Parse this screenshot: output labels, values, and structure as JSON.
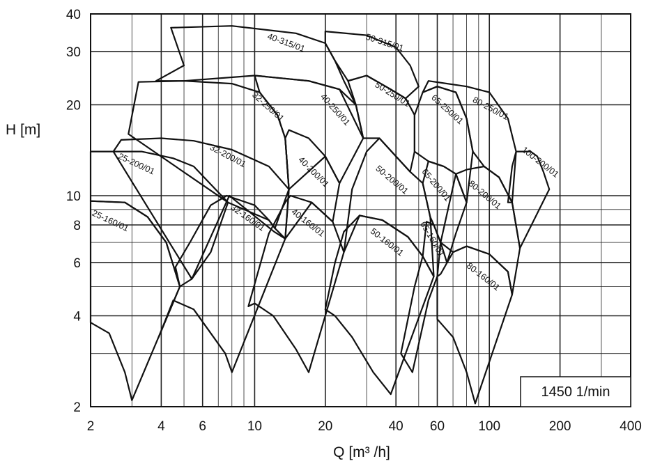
{
  "chart_data": {
    "type": "line",
    "title": "",
    "xlabel": "Q [m³ /h]",
    "ylabel": "H [m]",
    "xscale": "log",
    "yscale": "log",
    "xlim": [
      2,
      400
    ],
    "ylim": [
      2,
      40
    ],
    "grid": true,
    "x_ticks": [
      2,
      4,
      6,
      10,
      20,
      40,
      60,
      100,
      200,
      400
    ],
    "y_ticks": [
      2,
      4,
      6,
      8,
      10,
      20,
      30,
      40
    ],
    "speed_label": "1450 1/min",
    "pumps": [
      {
        "name": "25-160/01",
        "label_at": [
          2.4,
          8.1
        ],
        "label_angle": 25,
        "outline": [
          [
            2,
            3.8
          ],
          [
            2.4,
            3.5
          ],
          [
            2.8,
            2.6
          ],
          [
            3,
            2.1
          ],
          [
            4.8,
            5
          ],
          [
            4.2,
            7
          ],
          [
            3.5,
            8.5
          ],
          [
            2.8,
            9.5
          ],
          [
            2,
            9.6
          ]
        ]
      },
      {
        "name": "25-200/01",
        "label_at": [
          3.1,
          12.5
        ],
        "label_angle": 25,
        "outline": [
          [
            4.8,
            5
          ],
          [
            5.4,
            5.3
          ],
          [
            6.5,
            6.5
          ],
          [
            7.7,
            9.5
          ],
          [
            5.5,
            12.5
          ],
          [
            4.5,
            13.3
          ],
          [
            3.3,
            14
          ],
          [
            2,
            14
          ],
          [
            2,
            9.6
          ],
          [
            2.8,
            9.5
          ],
          [
            3.5,
            8.5
          ],
          [
            4.2,
            7
          ]
        ]
      },
      {
        "name": "32-160/01",
        "label_at": [
          9.2,
          8.3
        ],
        "label_angle": 35,
        "outline": [
          [
            3.9,
            3.4
          ],
          [
            4.5,
            4.5
          ],
          [
            5.5,
            4.2
          ],
          [
            7.5,
            3
          ],
          [
            8,
            2.6
          ],
          [
            13.5,
            7.2
          ],
          [
            12.2,
            7.8
          ],
          [
            11.5,
            8.3
          ],
          [
            10,
            9.3
          ],
          [
            7.6,
            10
          ],
          [
            6.5,
            9.3
          ],
          [
            5.3,
            7
          ],
          [
            4.6,
            5.8
          ],
          [
            4.8,
            5
          ]
        ]
      },
      {
        "name": "32-200/01",
        "label_at": [
          7.6,
          13.3
        ],
        "label_angle": 28,
        "outline": [
          [
            5.4,
            5.3
          ],
          [
            7.8,
            10
          ],
          [
            12.1,
            7.6
          ],
          [
            13.5,
            7.2
          ],
          [
            14,
            10.5
          ],
          [
            11.5,
            12.5
          ],
          [
            8,
            14.2
          ],
          [
            5.5,
            15.2
          ],
          [
            4,
            15.5
          ],
          [
            2.7,
            15.3
          ],
          [
            2.5,
            14
          ]
        ]
      },
      {
        "name": "32-250/01",
        "label_at": [
          11.2,
          19.4
        ],
        "label_angle": 42,
        "outline": [
          [
            7.7,
            9.5
          ],
          [
            11.5,
            8.3
          ],
          [
            12.2,
            7.8
          ],
          [
            14,
            10.5
          ],
          [
            13.5,
            15.5
          ],
          [
            12.5,
            18.5
          ],
          [
            10.5,
            22
          ],
          [
            8,
            23.5
          ],
          [
            5,
            24
          ],
          [
            3.2,
            23.8
          ],
          [
            2.9,
            16
          ]
        ]
      },
      {
        "name": "40-160/01",
        "label_at": [
          16.6,
          8
        ],
        "label_angle": 38,
        "outline": [
          [
            9.4,
            4.3
          ],
          [
            10,
            4.4
          ],
          [
            12,
            4
          ],
          [
            15,
            3.1
          ],
          [
            17,
            2.6
          ],
          [
            24,
            6.5
          ],
          [
            21.5,
            8.2
          ],
          [
            17.5,
            9.5
          ],
          [
            14.2,
            10
          ],
          [
            13.5,
            9.5
          ],
          [
            11.5,
            7.5
          ]
        ]
      },
      {
        "name": "40-200/01",
        "label_at": [
          17.5,
          11.8
        ],
        "label_angle": 45,
        "outline": [
          [
            13.5,
            7.2
          ],
          [
            17.5,
            9.5
          ],
          [
            21.5,
            8.2
          ],
          [
            23,
            11
          ],
          [
            20,
            13.5
          ],
          [
            17,
            15.5
          ],
          [
            14,
            16.5
          ],
          [
            13.5,
            15.5
          ],
          [
            14,
            10.5
          ]
        ]
      },
      {
        "name": "40-250/01",
        "label_at": [
          21.6,
          19
        ],
        "label_angle": 48,
        "outline": [
          [
            14,
            10.5
          ],
          [
            20,
            13.5
          ],
          [
            23,
            11
          ],
          [
            29,
            15.5
          ],
          [
            27,
            20
          ],
          [
            23,
            22.5
          ],
          [
            17,
            24
          ],
          [
            10,
            25
          ],
          [
            10.5,
            22
          ],
          [
            12.5,
            18.5
          ],
          [
            13.5,
            15.5
          ]
        ]
      },
      {
        "name": "40-315/01",
        "label_at": [
          13.5,
          31.5
        ],
        "label_angle": 20,
        "outline": [
          [
            3.8,
            24
          ],
          [
            5,
            27
          ],
          [
            4.4,
            36
          ],
          [
            8,
            36.5
          ],
          [
            15,
            34.5
          ],
          [
            20,
            32
          ],
          [
            22,
            28
          ],
          [
            24,
            24
          ],
          [
            27,
            20
          ],
          [
            29,
            15.5
          ],
          [
            23,
            22.5
          ],
          [
            17,
            24
          ],
          [
            10,
            25
          ],
          [
            5,
            24
          ],
          [
            4.4,
            24
          ]
        ]
      },
      {
        "name": "50-160/01",
        "label_at": [
          36,
          6.9
        ],
        "label_angle": 38,
        "outline": [
          [
            20,
            4.2
          ],
          [
            22,
            4
          ],
          [
            26,
            3.4
          ],
          [
            32,
            2.6
          ],
          [
            38,
            2.2
          ],
          [
            58,
            5.4
          ],
          [
            52,
            6.3
          ],
          [
            45,
            7.3
          ],
          [
            35,
            8.3
          ],
          [
            28,
            8.6
          ],
          [
            24,
            7.6
          ],
          [
            22,
            6
          ]
        ]
      },
      {
        "name": "50-200/01",
        "label_at": [
          37.8,
          11.1
        ],
        "label_angle": 40,
        "outline": [
          [
            24,
            6.5
          ],
          [
            28,
            8.6
          ],
          [
            35,
            8.3
          ],
          [
            45,
            7.3
          ],
          [
            52,
            6.3
          ],
          [
            58,
            5.4
          ],
          [
            56,
            8.5
          ],
          [
            52,
            11
          ],
          [
            46,
            12
          ],
          [
            40,
            13.5
          ],
          [
            34,
            15.5
          ],
          [
            30,
            14
          ],
          [
            26,
            10.5
          ]
        ]
      },
      {
        "name": "50-250/01",
        "label_at": [
          38.1,
          21.3
        ],
        "label_angle": 32,
        "outline": [
          [
            29,
            15.5
          ],
          [
            34,
            15.5
          ],
          [
            40,
            13.5
          ],
          [
            46,
            12
          ],
          [
            48,
            14
          ],
          [
            48,
            18.5
          ],
          [
            44,
            21
          ],
          [
            38,
            22.5
          ],
          [
            30,
            25
          ],
          [
            25,
            24
          ],
          [
            27,
            20
          ]
        ]
      },
      {
        "name": "50-315/01",
        "label_at": [
          35.5,
          31.5
        ],
        "label_angle": 18,
        "outline": [
          [
            20,
            35
          ],
          [
            30,
            34
          ],
          [
            40,
            31
          ],
          [
            46,
            27
          ],
          [
            50,
            23
          ],
          [
            44,
            21
          ],
          [
            38,
            22.5
          ],
          [
            30,
            25
          ],
          [
            25,
            24
          ],
          [
            22,
            28
          ],
          [
            20,
            32
          ]
        ]
      },
      {
        "name": "65-160/01",
        "label_at": [
          55.8,
          7.1
        ],
        "label_angle": 60,
        "outline": [
          [
            47,
            2.6
          ],
          [
            55,
            4.5
          ],
          [
            60,
            5.4
          ],
          [
            62,
            7
          ],
          [
            58,
            8
          ],
          [
            54,
            8.2
          ],
          [
            52,
            6.3
          ],
          [
            48,
            5
          ],
          [
            42,
            3
          ]
        ]
      },
      {
        "name": "65-200/01",
        "label_at": [
          58.1,
          10.7
        ],
        "label_angle": 50,
        "outline": [
          [
            52,
            11
          ],
          [
            56,
            8.5
          ],
          [
            58,
            8
          ],
          [
            62,
            7
          ],
          [
            66,
            6
          ],
          [
            72,
            7.5
          ],
          [
            80,
            9.5
          ],
          [
            72,
            11.8
          ],
          [
            64,
            12.5
          ],
          [
            55,
            13
          ]
        ]
      },
      {
        "name": "65-250/01",
        "label_at": [
          65,
          19
        ],
        "label_angle": 42,
        "outline": [
          [
            48,
            14
          ],
          [
            55,
            13
          ],
          [
            64,
            12.5
          ],
          [
            72,
            11.8
          ],
          [
            80,
            9.5
          ],
          [
            85,
            14
          ],
          [
            80,
            18
          ],
          [
            72,
            22
          ],
          [
            60,
            23
          ],
          [
            52,
            22
          ],
          [
            48,
            18.5
          ]
        ]
      },
      {
        "name": "80-160/01",
        "label_at": [
          92.6,
          5.3
        ],
        "label_angle": 38,
        "outline": [
          [
            60,
            3.9
          ],
          [
            70,
            3.4
          ],
          [
            80,
            2.6
          ],
          [
            87,
            2.05
          ],
          [
            125,
            4.7
          ],
          [
            120,
            5.6
          ],
          [
            100,
            6.4
          ],
          [
            80,
            6.8
          ],
          [
            70,
            6.5
          ],
          [
            62,
            5.5
          ],
          [
            60,
            5.4
          ]
        ]
      },
      {
        "name": "80-200/01",
        "label_at": [
          94,
          9.9
        ],
        "label_angle": 40,
        "outline": [
          [
            62,
            7
          ],
          [
            70,
            6.5
          ],
          [
            80,
            6.8
          ],
          [
            100,
            6.4
          ],
          [
            120,
            5.6
          ],
          [
            125,
            4.7
          ],
          [
            135,
            6.7
          ],
          [
            125,
            9.5
          ],
          [
            110,
            11.5
          ],
          [
            95,
            12.5
          ],
          [
            80,
            12.2
          ],
          [
            72,
            11.8
          ]
        ]
      },
      {
        "name": "80-250/01",
        "label_at": [
          100,
          19.1
        ],
        "label_angle": 28,
        "outline": [
          [
            52,
            22
          ],
          [
            55,
            24
          ],
          [
            80,
            23
          ],
          [
            100,
            22
          ],
          [
            120,
            18
          ],
          [
            130,
            14
          ],
          [
            125,
            9.5
          ],
          [
            110,
            11.5
          ],
          [
            95,
            12.5
          ],
          [
            85,
            14
          ],
          [
            80,
            18
          ],
          [
            72,
            22
          ],
          [
            60,
            23
          ]
        ]
      },
      {
        "name": "100-200/01",
        "label_at": [
          162,
          12.7
        ],
        "label_angle": 38,
        "outline": [
          [
            120,
            9.5
          ],
          [
            125,
            9.5
          ],
          [
            135,
            6.7
          ],
          [
            180,
            10.5
          ],
          [
            170,
            12
          ],
          [
            160,
            13.5
          ],
          [
            150,
            14
          ],
          [
            130,
            14
          ],
          [
            125,
            12.5
          ]
        ]
      }
    ]
  }
}
